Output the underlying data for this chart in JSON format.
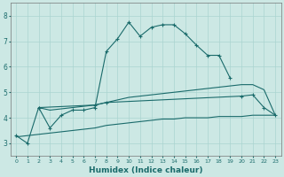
{
  "xlabel": "Humidex (Indice chaleur)",
  "bg_color": "#cce8e4",
  "grid_color": "#aad4d0",
  "line_color": "#1a6b6b",
  "xlim": [
    -0.5,
    23.5
  ],
  "ylim": [
    2.5,
    8.5
  ],
  "xticks": [
    0,
    1,
    2,
    3,
    4,
    5,
    6,
    7,
    8,
    9,
    10,
    11,
    12,
    13,
    14,
    15,
    16,
    17,
    18,
    19,
    20,
    21,
    22,
    23
  ],
  "yticks": [
    3,
    4,
    5,
    6,
    7,
    8
  ],
  "line1_x": [
    0,
    1,
    2,
    3,
    4,
    5,
    6,
    7,
    8,
    9,
    10,
    11,
    12,
    13,
    14,
    15,
    16,
    17,
    18,
    19
  ],
  "line1_y": [
    3.3,
    3.0,
    4.4,
    3.6,
    4.1,
    4.3,
    4.3,
    4.4,
    6.6,
    7.1,
    7.75,
    7.2,
    7.55,
    7.65,
    7.65,
    7.3,
    6.85,
    6.45,
    6.45,
    5.55
  ],
  "line2_x": [
    2,
    7,
    8,
    20,
    21,
    22,
    23
  ],
  "line2_y": [
    4.4,
    4.5,
    4.6,
    4.85,
    4.9,
    4.4,
    4.1
  ],
  "line3_x": [
    0,
    1,
    2,
    3,
    4,
    5,
    6,
    7,
    8,
    9,
    10,
    11,
    12,
    13,
    14,
    15,
    16,
    17,
    18,
    19,
    20,
    21,
    22,
    23
  ],
  "line3_y": [
    3.25,
    3.3,
    3.35,
    3.4,
    3.45,
    3.5,
    3.55,
    3.6,
    3.7,
    3.75,
    3.8,
    3.85,
    3.9,
    3.95,
    3.95,
    4.0,
    4.0,
    4.0,
    4.05,
    4.05,
    4.05,
    4.1,
    4.1,
    4.1
  ],
  "line4_x": [
    2,
    3,
    4,
    5,
    6,
    7,
    8,
    9,
    10,
    11,
    12,
    13,
    14,
    15,
    16,
    17,
    18,
    19,
    20,
    21,
    22,
    23
  ],
  "line4_y": [
    4.4,
    4.3,
    4.35,
    4.4,
    4.45,
    4.5,
    4.6,
    4.7,
    4.8,
    4.85,
    4.9,
    4.95,
    5.0,
    5.05,
    5.1,
    5.15,
    5.2,
    5.25,
    5.3,
    5.3,
    5.1,
    4.1
  ]
}
